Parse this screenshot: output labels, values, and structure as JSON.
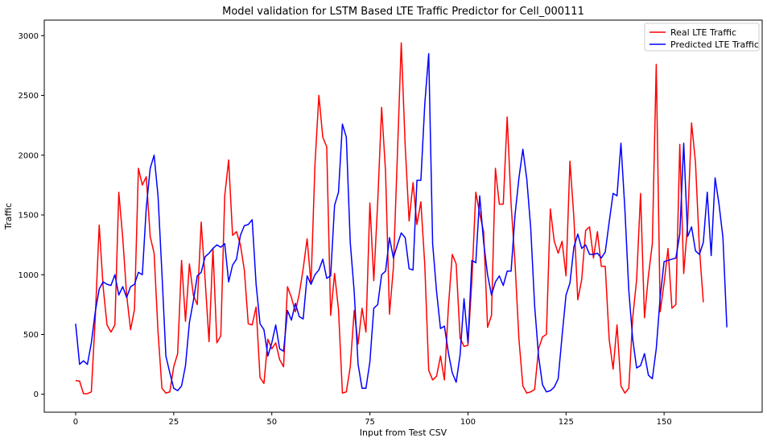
{
  "chart_data": {
    "type": "line",
    "title": "Model validation for LSTM Based LTE Traffic Predictor for Cell_000111",
    "xlabel": "Input from Test CSV",
    "ylabel": "Traffic",
    "xlim": [
      -8,
      175
    ],
    "ylim": [
      -150,
      3130
    ],
    "xticks": [
      0,
      25,
      50,
      75,
      100,
      125,
      150
    ],
    "yticks": [
      0,
      500,
      1000,
      1500,
      2000,
      2500,
      3000
    ],
    "grid": false,
    "legend_position": "top-right",
    "series": [
      {
        "name": "Real LTE Traffic",
        "color": "#ff0000",
        "values": [
          115,
          110,
          5,
          5,
          20,
          640,
          1415,
          900,
          580,
          520,
          580,
          1690,
          1310,
          830,
          540,
          710,
          1890,
          1750,
          1820,
          1320,
          1180,
          520,
          50,
          10,
          20,
          230,
          340,
          1120,
          610,
          1090,
          830,
          750,
          1440,
          960,
          440,
          1220,
          430,
          490,
          1660,
          1960,
          1330,
          1360,
          1250,
          1040,
          590,
          580,
          730,
          140,
          90,
          460,
          380,
          430,
          290,
          230,
          900,
          810,
          690,
          840,
          1050,
          1300,
          920,
          1920,
          2500,
          2150,
          2070,
          660,
          1010,
          710,
          10,
          20,
          230,
          700,
          420,
          720,
          520,
          1600,
          950,
          1610,
          2400,
          1860,
          670,
          1060,
          1990,
          2940,
          2080,
          1450,
          1770,
          1420,
          1610,
          1080,
          200,
          120,
          150,
          320,
          120,
          720,
          1170,
          1090,
          470,
          400,
          410,
          950,
          1690,
          1510,
          1360,
          560,
          660,
          1890,
          1590,
          1590,
          2320,
          1590,
          1100,
          460,
          70,
          10,
          20,
          40,
          380,
          480,
          500,
          1550,
          1280,
          1180,
          1280,
          990,
          1950,
          1480,
          790,
          960,
          1370,
          1400,
          1140,
          1360,
          1070,
          1070,
          460,
          210,
          580,
          70,
          10,
          50,
          640,
          960,
          1680,
          640,
          990,
          1260,
          2760,
          690,
          930,
          1220,
          720,
          750,
          2090,
          1010,
          1430,
          2270,
          1940,
          1220,
          770
        ]
      },
      {
        "name": "Predicted LTE Traffic",
        "color": "#0000ff",
        "values": [
          590,
          250,
          280,
          250,
          430,
          690,
          880,
          940,
          920,
          910,
          1000,
          830,
          900,
          810,
          900,
          920,
          1020,
          1000,
          1560,
          1890,
          2000,
          1660,
          1010,
          320,
          180,
          50,
          30,
          70,
          240,
          600,
          780,
          990,
          1020,
          1150,
          1180,
          1220,
          1250,
          1230,
          1260,
          940,
          1080,
          1130,
          1330,
          1410,
          1420,
          1460,
          920,
          590,
          540,
          320,
          430,
          580,
          380,
          360,
          700,
          620,
          760,
          650,
          630,
          990,
          920,
          1000,
          1040,
          1130,
          970,
          990,
          1580,
          1690,
          2260,
          2150,
          1270,
          860,
          250,
          50,
          50,
          270,
          720,
          750,
          1000,
          1030,
          1310,
          1140,
          1250,
          1350,
          1310,
          1050,
          1040,
          1790,
          1790,
          2430,
          2850,
          1260,
          860,
          550,
          570,
          350,
          180,
          100,
          330,
          800,
          430,
          1120,
          1100,
          1660,
          1270,
          1000,
          830,
          940,
          990,
          910,
          1030,
          1030,
          1500,
          1810,
          2050,
          1800,
          1390,
          740,
          320,
          80,
          20,
          30,
          60,
          130,
          490,
          830,
          930,
          1230,
          1340,
          1220,
          1250,
          1170,
          1170,
          1180,
          1140,
          1190,
          1440,
          1680,
          1660,
          2100,
          1550,
          870,
          460,
          220,
          240,
          340,
          160,
          130,
          380,
          810,
          1110,
          1120,
          1130,
          1140,
          1340,
          2100,
          1320,
          1400,
          1200,
          1170,
          1270,
          1690,
          1160,
          1810,
          1590,
          1310,
          560
        ]
      }
    ]
  }
}
